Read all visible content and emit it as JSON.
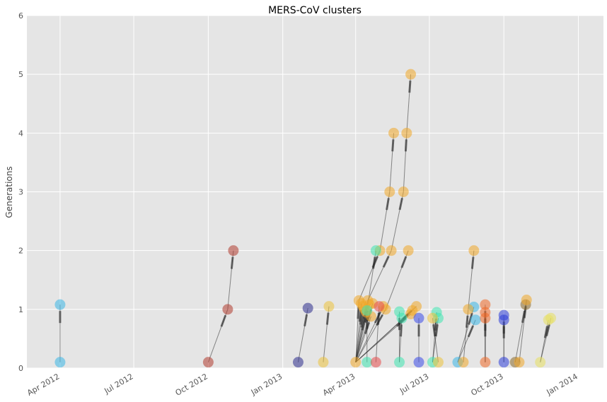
{
  "chart_data": {
    "type": "scatter",
    "title": "MERS-CoV clusters",
    "xlabel": "",
    "ylabel": "Generations",
    "xlim": [
      "2012-02-20",
      "2014-02-01"
    ],
    "ylim": [
      0,
      6
    ],
    "yticks": [
      0,
      1,
      2,
      3,
      4,
      5,
      6
    ],
    "xticks": [
      {
        "label": "Apr 2012",
        "date": "2012-04-01"
      },
      {
        "label": "Jul 2012",
        "date": "2012-07-01"
      },
      {
        "label": "Oct 2012",
        "date": "2012-10-01"
      },
      {
        "label": "Jan 2013",
        "date": "2013-01-01"
      },
      {
        "label": "Apr 2013",
        "date": "2013-04-01"
      },
      {
        "label": "Jul 2013",
        "date": "2013-07-01"
      },
      {
        "label": "Oct 2013",
        "date": "2013-10-01"
      },
      {
        "label": "Jan 2014",
        "date": "2014-01-01"
      }
    ],
    "grid": true,
    "legend": "none",
    "clusters": [
      {
        "color": "#3bb6e6",
        "points": [
          {
            "date": "2012-04-01",
            "gen": 0.1
          },
          {
            "date": "2012-04-01",
            "gen": 1.08
          }
        ],
        "edges": [
          [
            0,
            1
          ]
        ]
      },
      {
        "color": "#b03a2e",
        "points": [
          {
            "date": "2012-10-01",
            "gen": 0.1
          },
          {
            "date": "2012-10-25",
            "gen": 1.0
          },
          {
            "date": "2012-11-01",
            "gen": 2.0
          }
        ],
        "edges": [
          [
            0,
            1
          ],
          [
            1,
            2
          ]
        ]
      },
      {
        "color": "#2c2c8c",
        "points": [
          {
            "date": "2013-01-20",
            "gen": 0.1
          },
          {
            "date": "2013-02-01",
            "gen": 1.02
          }
        ],
        "edges": [
          [
            0,
            1
          ]
        ]
      },
      {
        "color": "#ecc23c",
        "points": [
          {
            "date": "2013-02-20",
            "gen": 0.1
          },
          {
            "date": "2013-02-27",
            "gen": 1.05
          }
        ],
        "edges": [
          [
            0,
            1
          ]
        ]
      },
      {
        "color": "#f0a828",
        "points": [
          {
            "date": "2013-04-01",
            "gen": 0.1
          },
          {
            "date": "2013-04-05",
            "gen": 1.15
          },
          {
            "date": "2013-04-08",
            "gen": 1.1
          },
          {
            "date": "2013-04-10",
            "gen": 1.05
          },
          {
            "date": "2013-04-12",
            "gen": 1.0
          },
          {
            "date": "2013-04-14",
            "gen": 0.95
          },
          {
            "date": "2013-04-16",
            "gen": 1.15
          },
          {
            "date": "2013-04-18",
            "gen": 1.08
          },
          {
            "date": "2013-04-20",
            "gen": 0.88
          },
          {
            "date": "2013-04-22",
            "gen": 1.1
          },
          {
            "date": "2013-05-05",
            "gen": 1.05
          },
          {
            "date": "2013-05-08",
            "gen": 1.0
          },
          {
            "date": "2013-06-10",
            "gen": 0.98
          },
          {
            "date": "2013-06-15",
            "gen": 1.05
          },
          {
            "date": "2013-06-08",
            "gen": 0.92
          },
          {
            "date": "2013-05-01",
            "gen": 2.0
          },
          {
            "date": "2013-05-15",
            "gen": 2.0
          },
          {
            "date": "2013-06-05",
            "gen": 2.0
          },
          {
            "date": "2013-05-13",
            "gen": 3.0
          },
          {
            "date": "2013-05-30",
            "gen": 3.0
          },
          {
            "date": "2013-05-18",
            "gen": 4.0
          },
          {
            "date": "2013-06-03",
            "gen": 4.0
          },
          {
            "date": "2013-06-08",
            "gen": 5.0
          }
        ],
        "edges": [
          [
            0,
            1
          ],
          [
            0,
            2
          ],
          [
            0,
            3
          ],
          [
            0,
            4
          ],
          [
            0,
            5
          ],
          [
            0,
            6
          ],
          [
            0,
            7
          ],
          [
            0,
            8
          ],
          [
            0,
            9
          ],
          [
            0,
            10
          ],
          [
            0,
            11
          ],
          [
            0,
            12
          ],
          [
            0,
            13
          ],
          [
            0,
            14
          ],
          [
            1,
            15
          ],
          [
            6,
            16
          ],
          [
            11,
            17
          ],
          [
            15,
            18
          ],
          [
            16,
            19
          ],
          [
            18,
            20
          ],
          [
            19,
            21
          ],
          [
            21,
            22
          ]
        ]
      },
      {
        "color": "#3ee6b0",
        "points": [
          {
            "date": "2013-04-15",
            "gen": 0.1
          },
          {
            "date": "2013-04-15",
            "gen": 0.98
          },
          {
            "date": "2013-04-26",
            "gen": 2.0
          }
        ],
        "edges": [
          [
            0,
            1
          ],
          [
            1,
            2
          ]
        ]
      },
      {
        "color": "#e84c4c",
        "points": [
          {
            "date": "2013-04-26",
            "gen": 0.1
          },
          {
            "date": "2013-04-30",
            "gen": 1.05
          }
        ],
        "edges": [
          [
            0,
            1
          ]
        ]
      },
      {
        "color": "#3ee6b0",
        "points": [
          {
            "date": "2013-05-25",
            "gen": 0.1
          },
          {
            "date": "2013-05-25",
            "gen": 0.96
          },
          {
            "date": "2013-05-28",
            "gen": 0.85
          }
        ],
        "edges": [
          [
            0,
            1
          ],
          [
            0,
            2
          ]
        ]
      },
      {
        "color": "#3a4ae8",
        "points": [
          {
            "date": "2013-06-18",
            "gen": 0.1
          },
          {
            "date": "2013-06-18",
            "gen": 0.85
          }
        ],
        "edges": [
          [
            0,
            1
          ]
        ]
      },
      {
        "color": "#3ee6b0",
        "points": [
          {
            "date": "2013-07-05",
            "gen": 0.1
          },
          {
            "date": "2013-07-10",
            "gen": 0.95
          },
          {
            "date": "2013-07-12",
            "gen": 0.85
          }
        ],
        "edges": [
          [
            0,
            1
          ],
          [
            0,
            2
          ]
        ]
      },
      {
        "color": "#ecc23c",
        "points": [
          {
            "date": "2013-07-12",
            "gen": 0.1
          },
          {
            "date": "2013-07-05",
            "gen": 0.85
          }
        ],
        "edges": [
          [
            0,
            1
          ]
        ]
      },
      {
        "color": "#3bb6e6",
        "points": [
          {
            "date": "2013-08-05",
            "gen": 0.1
          },
          {
            "date": "2013-08-25",
            "gen": 1.04
          },
          {
            "date": "2013-08-27",
            "gen": 0.82
          }
        ],
        "edges": [
          [
            0,
            1
          ],
          [
            0,
            2
          ]
        ]
      },
      {
        "color": "#f0a828",
        "points": [
          {
            "date": "2013-08-12",
            "gen": 0.1
          },
          {
            "date": "2013-08-18",
            "gen": 1.0
          },
          {
            "date": "2013-08-25",
            "gen": 2.0
          }
        ],
        "edges": [
          [
            0,
            1
          ],
          [
            1,
            2
          ]
        ]
      },
      {
        "color": "#f06a28",
        "points": [
          {
            "date": "2013-09-08",
            "gen": 0.1
          },
          {
            "date": "2013-09-08",
            "gen": 1.08
          },
          {
            "date": "2013-09-08",
            "gen": 0.95
          },
          {
            "date": "2013-09-08",
            "gen": 0.85
          }
        ],
        "edges": [
          [
            0,
            1
          ],
          [
            0,
            2
          ],
          [
            0,
            3
          ]
        ]
      },
      {
        "color": "#2e3ed8",
        "points": [
          {
            "date": "2013-10-01",
            "gen": 0.1
          },
          {
            "date": "2013-10-01",
            "gen": 0.9
          },
          {
            "date": "2013-10-01",
            "gen": 0.82
          }
        ],
        "edges": [
          [
            0,
            1
          ],
          [
            0,
            2
          ]
        ]
      },
      {
        "color": "#8a6a2a",
        "points": [
          {
            "date": "2013-10-15",
            "gen": 0.1
          },
          {
            "date": "2013-10-28",
            "gen": 1.08
          }
        ],
        "edges": [
          [
            0,
            1
          ]
        ]
      },
      {
        "color": "#f0a828",
        "points": [
          {
            "date": "2013-10-20",
            "gen": 0.1
          },
          {
            "date": "2013-10-29",
            "gen": 1.16
          }
        ],
        "edges": [
          [
            0,
            1
          ]
        ]
      },
      {
        "color": "#e8e060",
        "points": [
          {
            "date": "2013-11-15",
            "gen": 0.1
          },
          {
            "date": "2013-11-25",
            "gen": 0.82
          },
          {
            "date": "2013-11-28",
            "gen": 0.85
          }
        ],
        "edges": [
          [
            0,
            1
          ],
          [
            0,
            2
          ]
        ]
      }
    ]
  }
}
